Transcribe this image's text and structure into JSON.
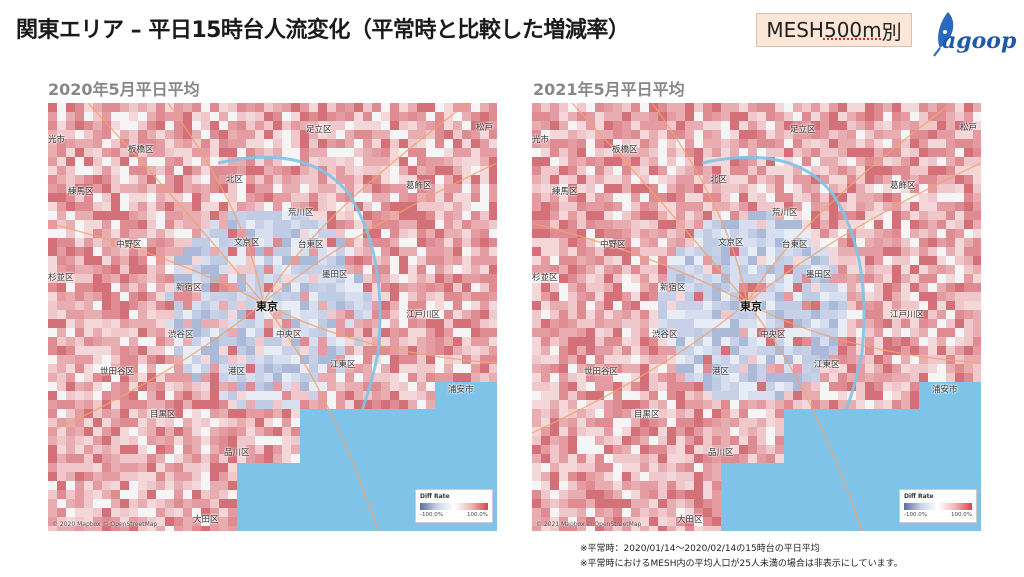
{
  "title": "関東エリア – 平日15時台人流変化（平常時と比較した増減率）",
  "badge": {
    "prefix": "MESH",
    "middle": "500m",
    "suffix": "別"
  },
  "logo": {
    "text": "agoop"
  },
  "maps": [
    {
      "subtitle": "2020年5月平日平均",
      "attribution": "© 2020 Mapbox © OpenStreetMap",
      "legend_title": "Diff Rate",
      "legend_min": "-100.0%",
      "legend_max": "100.0%"
    },
    {
      "subtitle": "2021年5月平日平均",
      "attribution": "© 2021 Mapbox © OpenStreetMap",
      "legend_title": "Diff Rate",
      "legend_min": "-100.0%",
      "legend_max": "100.0%"
    }
  ],
  "ward_labels": [
    "光市",
    "板橋区",
    "北区",
    "足立区",
    "松戸",
    "練馬区",
    "荒川区",
    "葛飾区",
    "中野区",
    "文京区",
    "台東区",
    "杉並区",
    "墨田区",
    "新宿区",
    "東京",
    "渋谷区",
    "中央区",
    "江戸川区",
    "港区",
    "江東区",
    "世田谷区",
    "浦安市",
    "目黒区",
    "品川区",
    "大田区"
  ],
  "notes": [
    "※平常時：2020/01/14〜2020/02/14の15時台の平日平均",
    "※平常時におけるMESH内の平均人口が25人未満の場合は非表示にしています。"
  ],
  "colors": {
    "increase": "#d9454f",
    "decrease": "#5b6f9e",
    "water": "#7fc4e8",
    "road": "#f3a36b"
  }
}
